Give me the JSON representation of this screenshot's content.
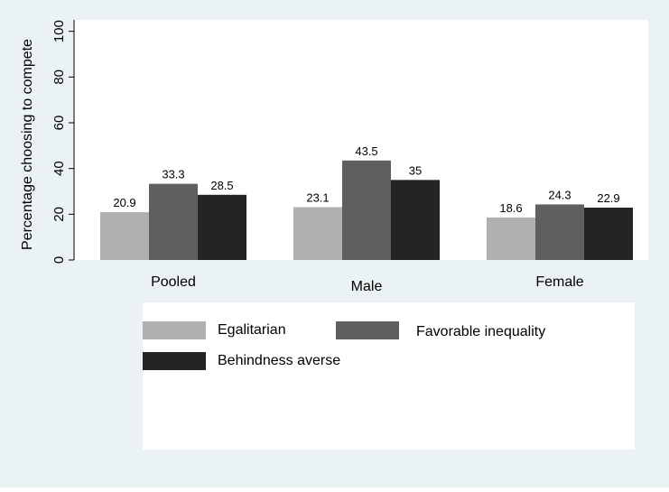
{
  "chart_data": {
    "type": "bar",
    "title": "",
    "xlabel": "",
    "ylabel": "Percentage choosing to compete",
    "ylim": [
      0,
      105
    ],
    "yticks": [
      0,
      20,
      40,
      60,
      80,
      100
    ],
    "categories": [
      "Pooled",
      "Male",
      "Female"
    ],
    "series": [
      {
        "name": "Egalitarian",
        "values": [
          20.9,
          23.1,
          18.6
        ],
        "value_labels": [
          "20.9",
          "23.1",
          "18.6"
        ],
        "color": "#b0b0b0"
      },
      {
        "name": "Favorable inequality",
        "values": [
          33.3,
          43.5,
          24.3
        ],
        "value_labels": [
          "33.3",
          "43.5",
          "24.3"
        ],
        "color": "#5f5f5f"
      },
      {
        "name": "Behindness averse",
        "values": [
          28.5,
          35,
          22.9
        ],
        "value_labels": [
          "28.5",
          "35",
          "22.9"
        ],
        "color": "#242424"
      }
    ],
    "grid": false,
    "legend_position": "bottom",
    "colors": {
      "background": "#eaf2f3",
      "plot_background": "#ffffff",
      "legend_background": "#ffffff"
    }
  }
}
